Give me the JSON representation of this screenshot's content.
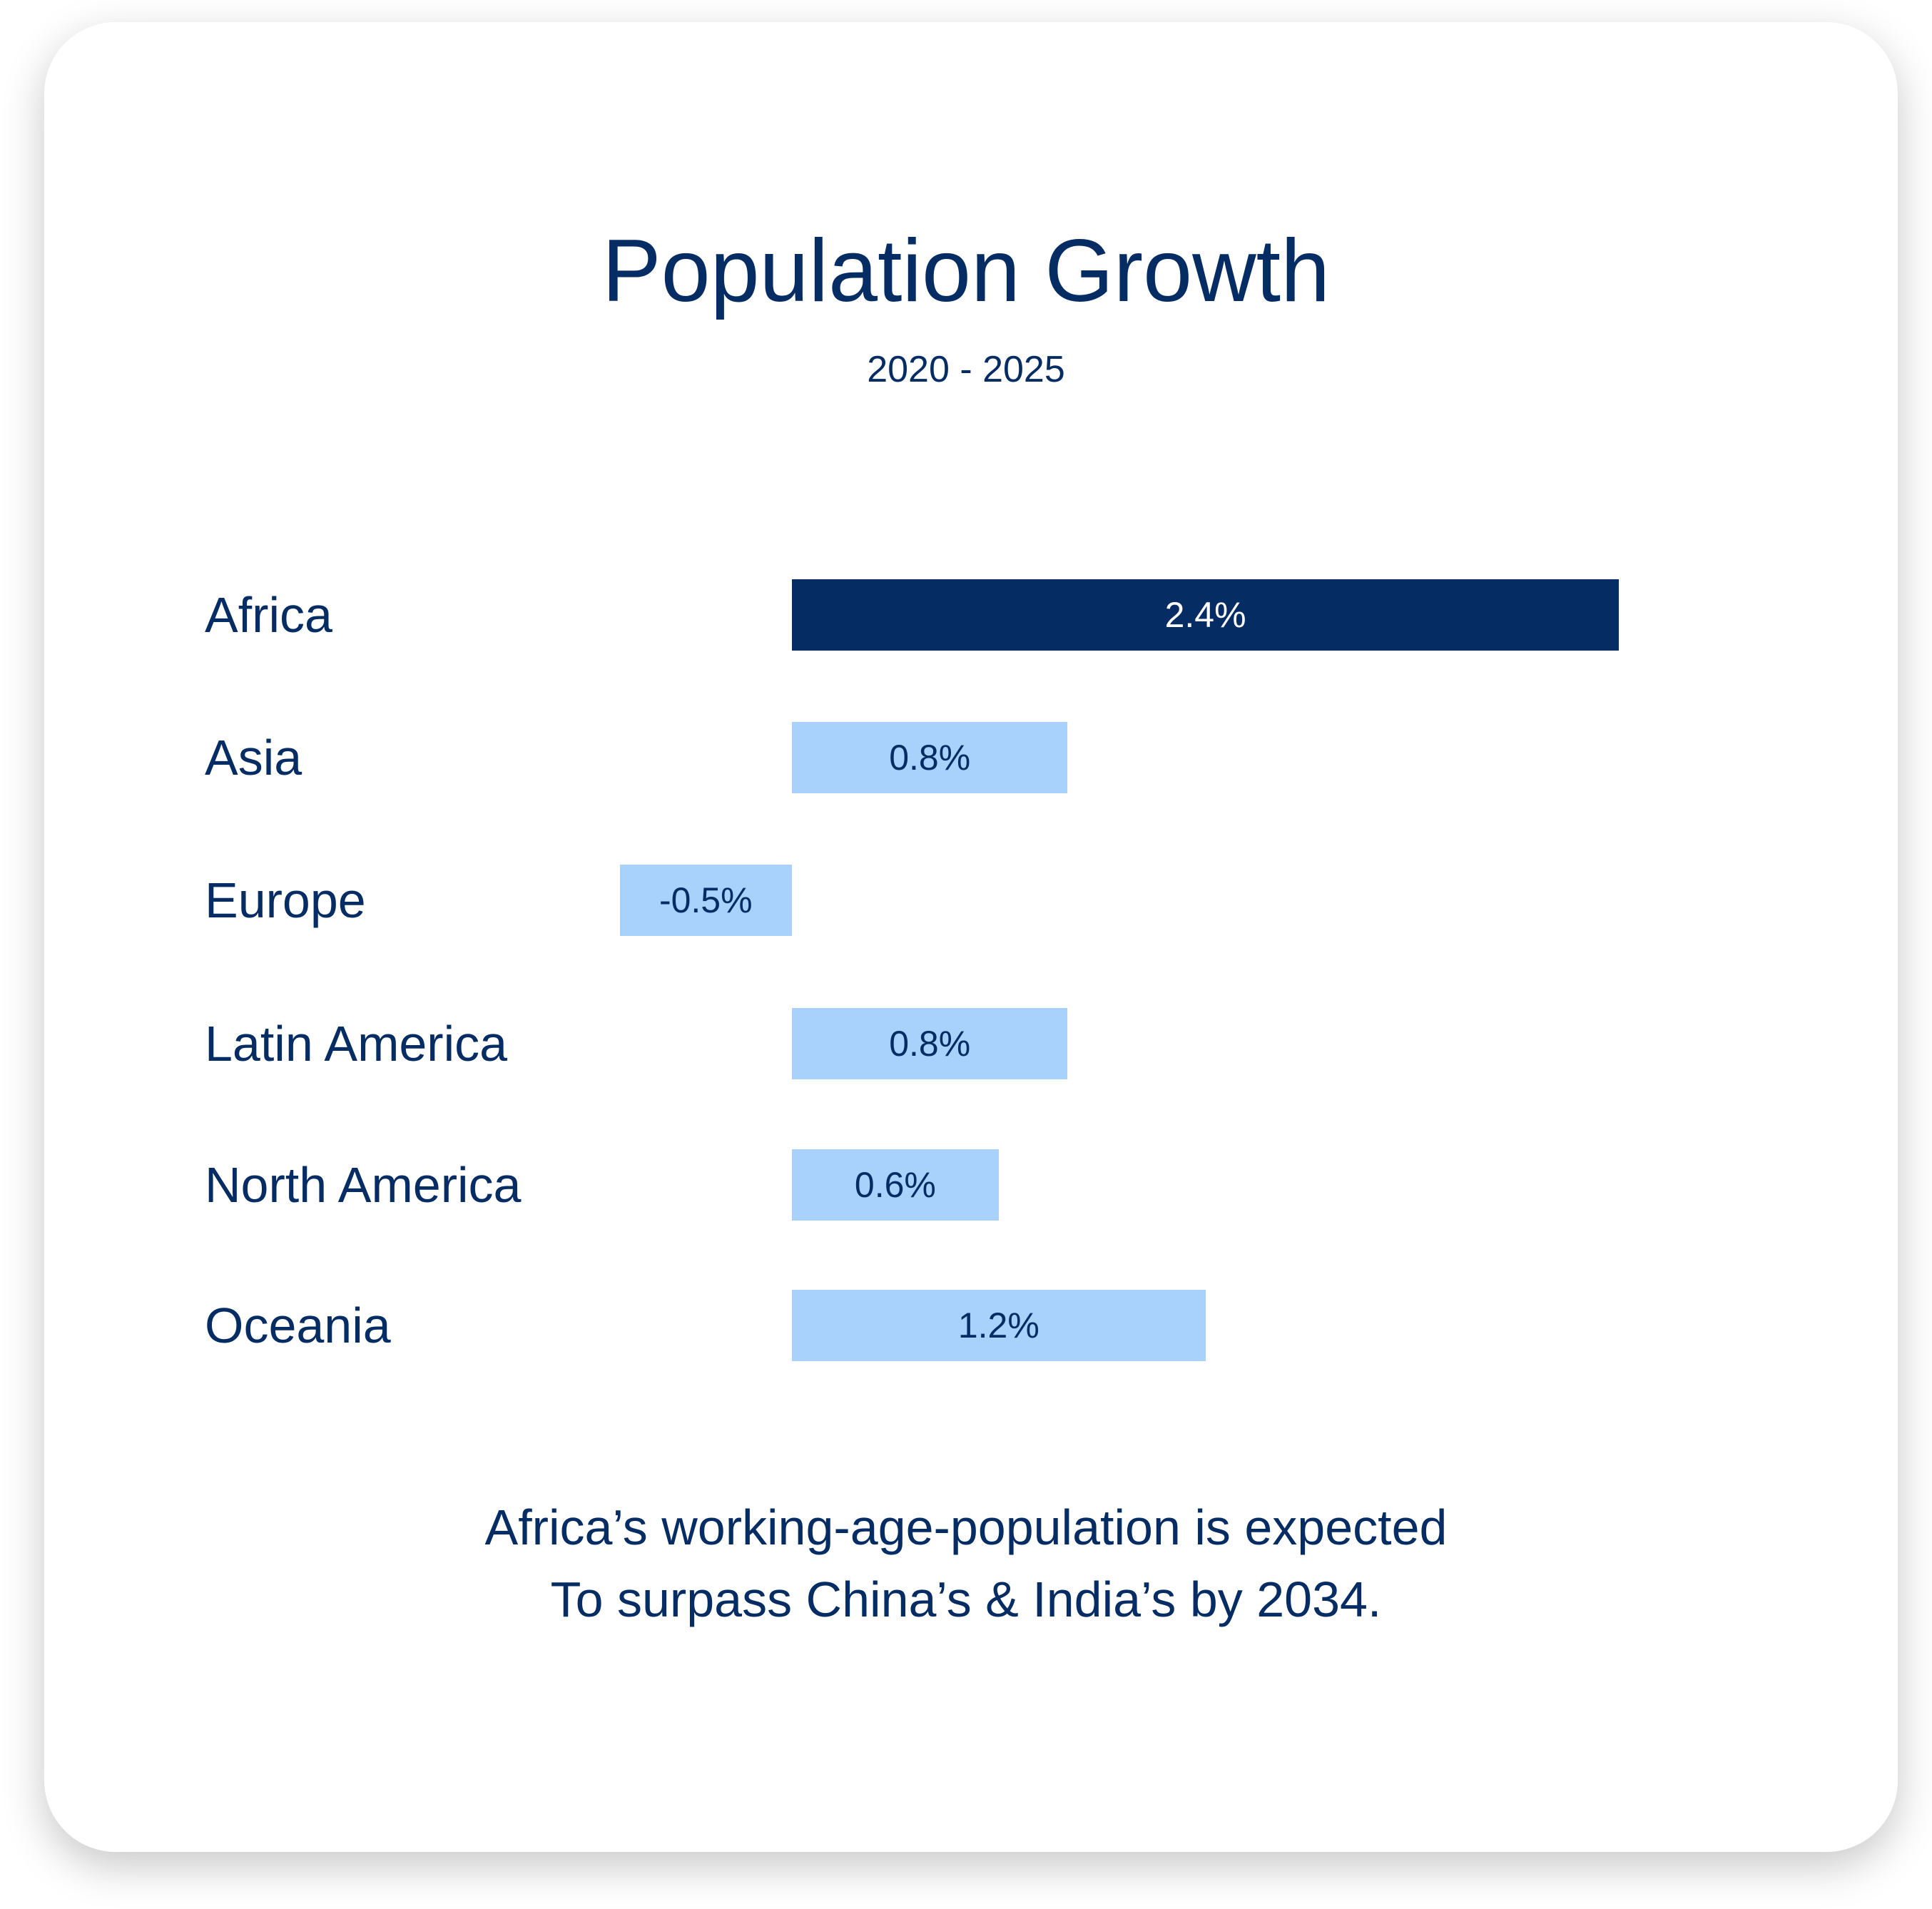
{
  "chart_data": {
    "type": "bar",
    "orientation": "horizontal",
    "title": "Population Growth",
    "subtitle": "2020 - 2025",
    "categories": [
      "Africa",
      "Asia",
      "Europe",
      "Latin America",
      "North America",
      "Oceania"
    ],
    "values": [
      2.4,
      0.8,
      -0.5,
      0.8,
      0.6,
      1.2
    ],
    "data_labels": [
      "2.4%",
      "0.8%",
      "-0.5%",
      "0.8%",
      "0.6%",
      "1.2%"
    ],
    "highlight": "Africa",
    "xlabel": "",
    "ylabel": "",
    "grid": false
  },
  "colors": {
    "highlight": "#062c64",
    "normal": "#a8d2fc",
    "text": "#062c64"
  },
  "footer": {
    "line1": "Africa’s working-age-population is expected",
    "line2": "To surpass China’s & India’s by 2034."
  }
}
